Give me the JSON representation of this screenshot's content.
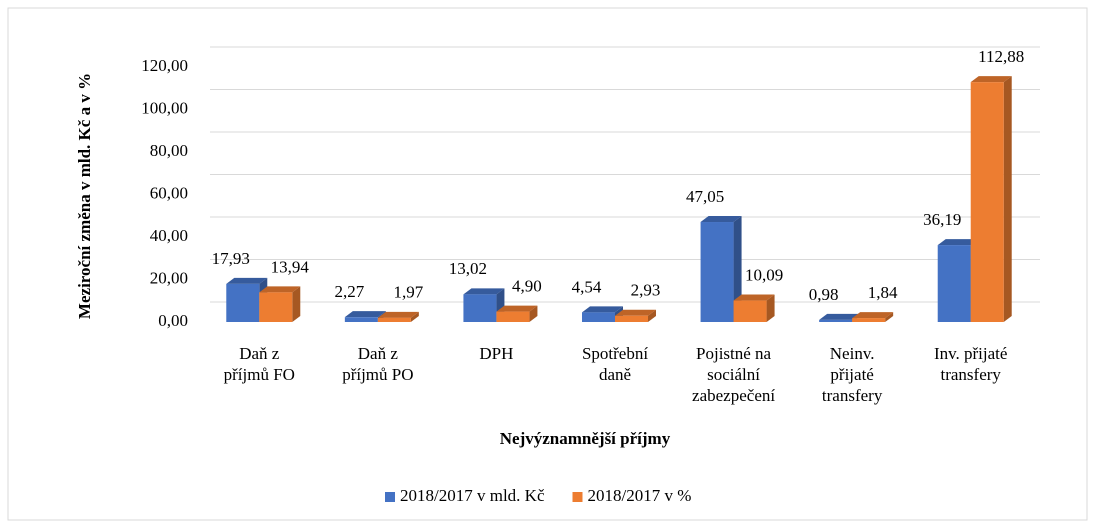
{
  "chart_data": {
    "type": "bar3d",
    "x_label": "Nejvýznamnější příjmy",
    "y_label": "Meziroční změna v mld. Kč a v %",
    "categories": [
      "Daň z\npříjmů FO",
      "Daň z\npříjmů PO",
      "DPH",
      "Spotřební\ndaně",
      "Pojistné na\nsociální\nzabezpečení",
      "Neinv.\npřijaté\ntransfery",
      "Inv. přijaté\ntransfery"
    ],
    "series": [
      {
        "name": "2018/2017 v mld. Kč",
        "color": "#4472c4",
        "values": [
          17.93,
          2.27,
          13.02,
          4.54,
          47.05,
          0.98,
          36.19
        ],
        "value_labels": [
          "17,93",
          "2,27",
          "13,02",
          "4,54",
          "47,05",
          "0,98",
          "36,19"
        ]
      },
      {
        "name": "2018/2017 v %",
        "color": "#ed7d31",
        "values": [
          13.94,
          1.97,
          4.9,
          2.93,
          10.09,
          1.84,
          112.88
        ],
        "value_labels": [
          "13,94",
          "1,97",
          "4,90",
          "2,93",
          "10,09",
          "1,84",
          "112,88"
        ]
      }
    ],
    "ylim": [
      0,
      120
    ],
    "yticks": [
      {
        "value": 0,
        "label": "0,00"
      },
      {
        "value": 20,
        "label": "20,00"
      },
      {
        "value": 40,
        "label": "40,00"
      },
      {
        "value": 60,
        "label": "60,00"
      },
      {
        "value": 80,
        "label": "80,00"
      },
      {
        "value": 100,
        "label": "100,00"
      },
      {
        "value": 120,
        "label": "120,00"
      }
    ],
    "grid": true,
    "legend": "bottom"
  }
}
